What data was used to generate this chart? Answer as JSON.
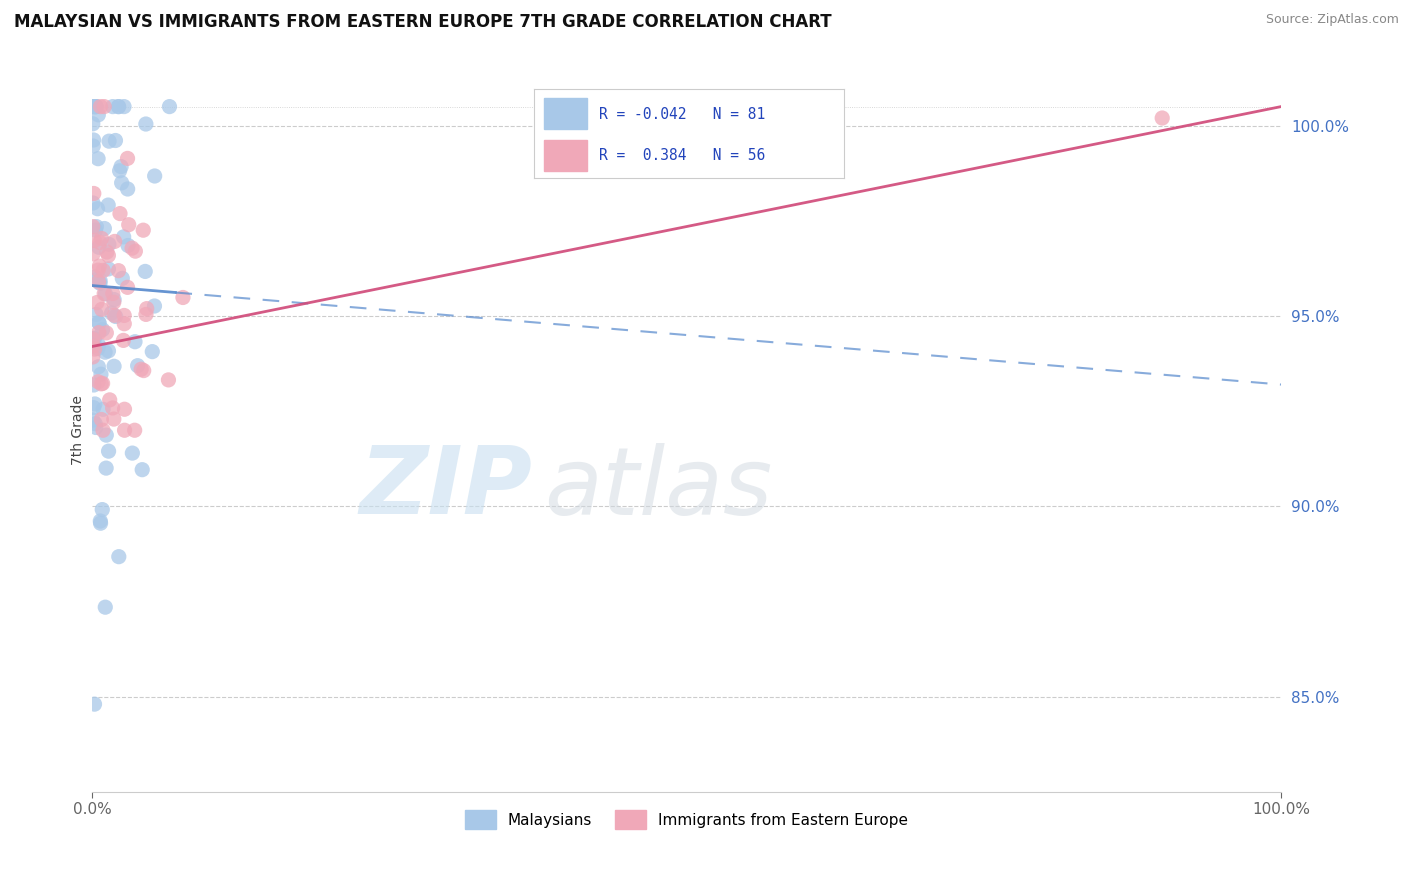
{
  "title": "MALAYSIAN VS IMMIGRANTS FROM EASTERN EUROPE 7TH GRADE CORRELATION CHART",
  "source": "Source: ZipAtlas.com",
  "ylabel": "7th Grade",
  "blue_R": -0.042,
  "blue_N": 81,
  "pink_R": 0.384,
  "pink_N": 56,
  "legend_blue_label": "Malaysians",
  "legend_pink_label": "Immigrants from Eastern Europe",
  "blue_color": "#a8c8e8",
  "blue_color_line": "#5588cc",
  "pink_color": "#f0a8b8",
  "pink_color_line": "#d04878",
  "bg_color": "#ffffff",
  "xlim": [
    0,
    100
  ],
  "ylim": [
    82.5,
    101.5
  ],
  "ytick_positions": [
    85,
    90,
    95,
    100
  ],
  "ytick_labels": [
    "85.0%",
    "90.0%",
    "95.0%",
    "100.0%"
  ],
  "blue_line_y_at_0": 95.8,
  "blue_line_y_at_100": 93.2,
  "pink_line_y_at_0": 94.2,
  "pink_line_y_at_100": 100.5,
  "blue_solid_end_x": 7,
  "watermark_zip_color": "#c8dff0",
  "watermark_atlas_color": "#d0d8e0"
}
